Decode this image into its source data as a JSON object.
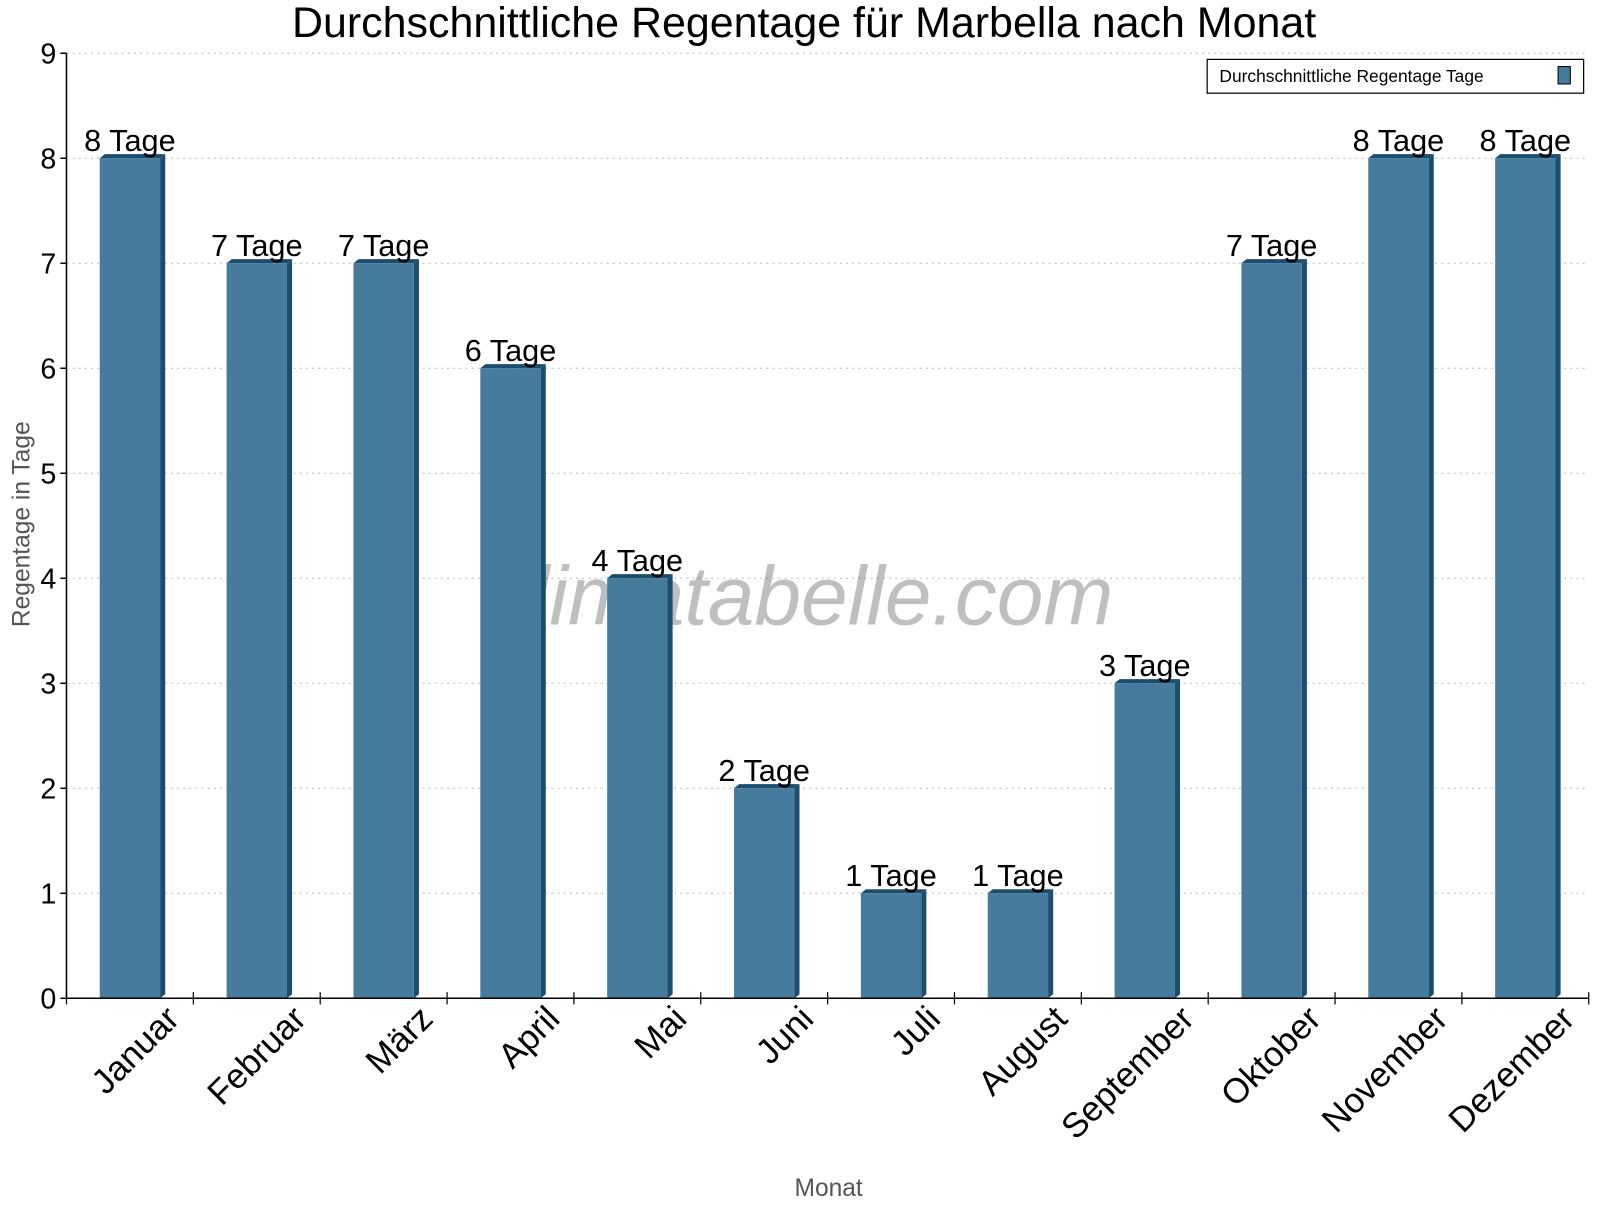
{
  "chart_data": {
    "type": "bar",
    "title": "Durchschnittliche Regentage für Marbella nach Monat",
    "xlabel": "Monat",
    "ylabel": "Regentage in Tage",
    "categories": [
      "Januar",
      "Februar",
      "März",
      "April",
      "Mai",
      "Juni",
      "Juli",
      "August",
      "September",
      "Oktober",
      "November",
      "Dezember"
    ],
    "series": [
      {
        "name": "Durchschnittliche Regentage Tage",
        "values": [
          8,
          7,
          7,
          6,
          4,
          2,
          1,
          1,
          3,
          7,
          8,
          8
        ],
        "color": "#467b9d",
        "side_color": "#1b4d6e"
      }
    ],
    "data_labels": [
      "8 Tage",
      "7 Tage",
      "7 Tage",
      "6 Tage",
      "4 Tage",
      "2 Tage",
      "1 Tage",
      "1 Tage",
      "3 Tage",
      "7 Tage",
      "8 Tage",
      "8 Tage"
    ],
    "yticks": [
      "0",
      "1",
      "2",
      "3",
      "4",
      "5",
      "6",
      "7",
      "8",
      "9"
    ],
    "ylim": [
      0,
      9
    ],
    "grid": true,
    "legend_position": "top-right",
    "watermark": "klimatabelle.com"
  }
}
